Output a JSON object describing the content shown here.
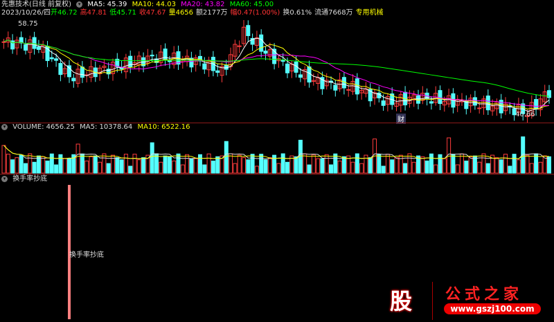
{
  "header": {
    "title": "先惠技术(日线 前复权)",
    "ma5": "MA5: 45.39",
    "ma10": "MA10: 44.03",
    "ma20": "MA20: 43.82",
    "ma60": "MA60: 45.00",
    "date": "2023/10/26/四",
    "open": "开46.72",
    "high": "高47.81",
    "low": "低45.71",
    "close": "收47.67",
    "vol": "量4656",
    "amount": "额2177万",
    "change": "幅0.47(1.00%)",
    "turnover": "换0.61%",
    "float": "流通7668万",
    "sector": "专用机械"
  },
  "price": {
    "max_label": "58.75",
    "min_label": "40.66",
    "marker": "财"
  },
  "volume": {
    "title": "VOLUME: 4656.25",
    "ma5": "MA5: 10378.64",
    "ma10": "MA10: 6522.16"
  },
  "indicator": {
    "title": "换手率抄底",
    "bar_label": "换手率抄底"
  },
  "logo": {
    "text": "股",
    "brand": "公式之家",
    "url": "www.gszj100.com"
  },
  "colors": {
    "up": "#ff3c3c",
    "down": "#54ffff",
    "ma5": "#ffffff",
    "ma10": "#ffff00",
    "ma20": "#ff00ff",
    "ma60": "#00ff00",
    "bar": "#ff8080"
  }
}
